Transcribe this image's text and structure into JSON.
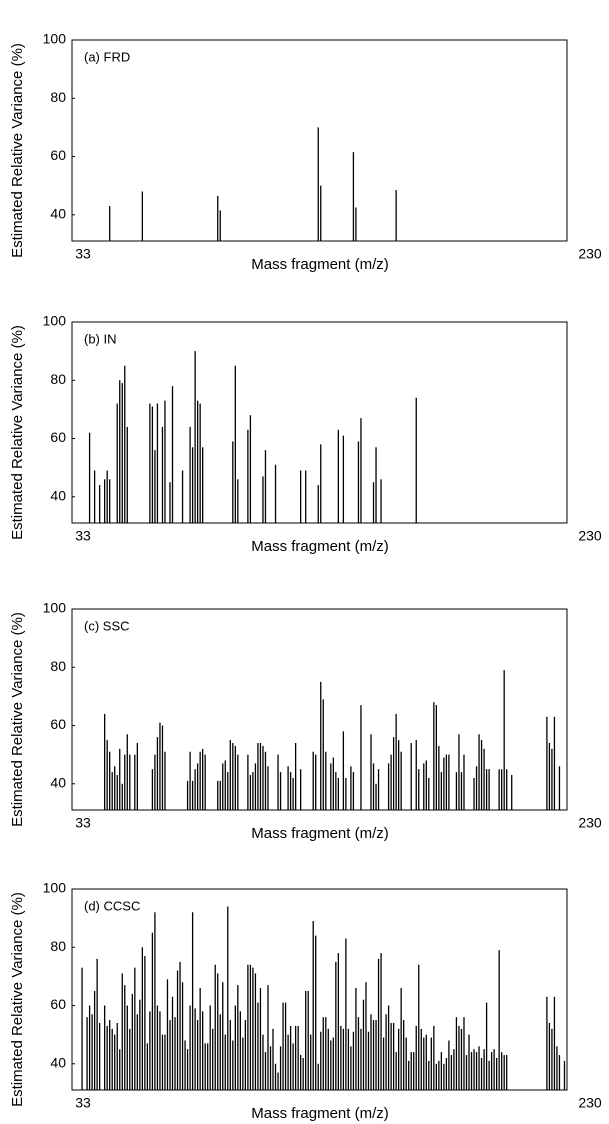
{
  "chart_data": [
    {
      "type": "bar",
      "title": "(a) FRD",
      "ylabel": "Estimated Relative Variance (%)",
      "xlabel": "Mass fragment (m/z)",
      "xlim": [
        33,
        230
      ],
      "xticks": [
        33,
        230
      ],
      "ylim": [
        31,
        100
      ],
      "yticks": [
        40,
        60,
        80,
        100
      ],
      "color": "#000000",
      "x": [
        48,
        61,
        91,
        92,
        131,
        132,
        145,
        146,
        162
      ],
      "values": [
        43,
        48,
        46.5,
        41.5,
        70,
        50,
        61.5,
        42.5,
        48.5
      ]
    },
    {
      "type": "bar",
      "title": "(b) IN",
      "ylabel": "Estimated Relative Variance (%)",
      "xlabel": "Mass fragment (m/z)",
      "xlim": [
        33,
        230
      ],
      "xticks": [
        33,
        230
      ],
      "ylim": [
        31,
        100
      ],
      "yticks": [
        40,
        60,
        80,
        100
      ],
      "color": "#000000",
      "x": [
        40,
        42,
        44,
        46,
        47,
        48,
        51,
        52,
        53,
        54,
        55,
        64,
        65,
        66,
        67,
        69,
        70,
        72,
        73,
        77,
        80,
        81,
        82,
        83,
        84,
        85,
        97,
        98,
        99,
        103,
        104,
        109,
        110,
        114,
        124,
        126,
        131,
        132,
        139,
        141,
        147,
        148,
        153,
        154,
        156,
        170
      ],
      "values": [
        62,
        49,
        44,
        46,
        49,
        46,
        72,
        80,
        79,
        85,
        64,
        72,
        71,
        56,
        72,
        64,
        73,
        45,
        78,
        49,
        64,
        57,
        90,
        73,
        72,
        57,
        59,
        85,
        46,
        63,
        68,
        47,
        56,
        51,
        49,
        49,
        44,
        58,
        63,
        61,
        59,
        67,
        45,
        57,
        46,
        74
      ]
    },
    {
      "type": "bar",
      "title": "(c) SSC",
      "ylabel": "Estimated Relative Variance (%)",
      "xlabel": "Mass fragment (m/z)",
      "xlim": [
        33,
        230
      ],
      "xticks": [
        33,
        230
      ],
      "ylim": [
        31,
        100
      ],
      "yticks": [
        40,
        60,
        80,
        100
      ],
      "color": "#000000",
      "x": [
        46,
        47,
        48,
        49,
        50,
        51,
        52,
        53,
        54,
        55,
        56,
        58,
        59,
        65,
        66,
        67,
        68,
        69,
        70,
        79,
        80,
        81,
        82,
        83,
        84,
        85,
        86,
        91,
        92,
        93,
        94,
        95,
        96,
        97,
        98,
        99,
        103,
        104,
        105,
        106,
        107,
        108,
        109,
        110,
        111,
        115,
        116,
        119,
        120,
        121,
        122,
        124,
        129,
        130,
        132,
        133,
        134,
        136,
        137,
        138,
        139,
        141,
        142,
        144,
        145,
        148,
        152,
        153,
        154,
        155,
        159,
        160,
        161,
        162,
        163,
        164,
        168,
        170,
        171,
        173,
        174,
        175,
        177,
        178,
        179,
        180,
        181,
        182,
        183,
        186,
        187,
        188,
        189,
        193,
        194,
        195,
        196,
        197,
        198,
        199,
        203,
        204,
        205,
        206,
        208,
        222,
        223,
        224,
        225,
        227
      ],
      "values": [
        64,
        55,
        51,
        44,
        46,
        43,
        52,
        40,
        50,
        57,
        50,
        50,
        54,
        45,
        50,
        56,
        61,
        60,
        51,
        41,
        51,
        41,
        45,
        47,
        51,
        52,
        50,
        41,
        41,
        47,
        48,
        44,
        55,
        54,
        53,
        50,
        50,
        43,
        44,
        47,
        54,
        54,
        53,
        51,
        46,
        50,
        44,
        46,
        44,
        42,
        54,
        45,
        51,
        50,
        75,
        69,
        51,
        47,
        49,
        44,
        42,
        58,
        42,
        46,
        44,
        67,
        57,
        47,
        40,
        45,
        47,
        50,
        56,
        64,
        55,
        51,
        54,
        55,
        45,
        47,
        48,
        42,
        68,
        67,
        53,
        44,
        49,
        50,
        50,
        44,
        57,
        44,
        50,
        42,
        46,
        57,
        55,
        52,
        45,
        45,
        45,
        45,
        79,
        45,
        43,
        63,
        54,
        52,
        63,
        46
      ]
    },
    {
      "type": "bar",
      "title": "(d) CCSC",
      "ylabel": "Estimated Relative Variance (%)",
      "xlabel": "Mass fragment (m/z)",
      "xlim": [
        33,
        230
      ],
      "xticks": [
        33,
        230
      ],
      "ylim": [
        31,
        100
      ],
      "yticks": [
        40,
        60,
        80,
        100
      ],
      "color": "#000000",
      "x": [
        37,
        39,
        40,
        41,
        42,
        43,
        44,
        46,
        47,
        48,
        49,
        50,
        51,
        52,
        53,
        54,
        55,
        56,
        57,
        58,
        59,
        60,
        61,
        62,
        63,
        64,
        65,
        66,
        67,
        68,
        69,
        70,
        71,
        72,
        73,
        74,
        75,
        76,
        77,
        78,
        79,
        80,
        81,
        82,
        83,
        84,
        85,
        86,
        87,
        88,
        89,
        90,
        91,
        92,
        93,
        94,
        95,
        96,
        97,
        98,
        99,
        100,
        101,
        102,
        103,
        104,
        105,
        106,
        107,
        108,
        109,
        110,
        111,
        112,
        113,
        114,
        115,
        116,
        117,
        118,
        119,
        120,
        121,
        122,
        123,
        124,
        125,
        126,
        127,
        128,
        129,
        130,
        131,
        132,
        133,
        134,
        135,
        136,
        137,
        138,
        139,
        140,
        141,
        142,
        143,
        144,
        145,
        146,
        147,
        148,
        149,
        150,
        151,
        152,
        153,
        154,
        155,
        156,
        157,
        158,
        159,
        160,
        161,
        162,
        163,
        164,
        165,
        166,
        167,
        168,
        169,
        170,
        171,
        172,
        173,
        174,
        175,
        176,
        177,
        178,
        179,
        180,
        181,
        182,
        183,
        184,
        185,
        186,
        187,
        188,
        189,
        190,
        191,
        192,
        193,
        194,
        195,
        196,
        197,
        198,
        199,
        200,
        201,
        202,
        203,
        204,
        205,
        206,
        222,
        223,
        224,
        225,
        226,
        227,
        229
      ],
      "values": [
        73,
        56,
        60,
        57,
        65,
        76,
        54,
        60,
        53,
        55,
        52,
        50,
        54,
        45,
        71,
        67,
        60,
        52,
        64,
        73,
        57,
        62,
        80,
        77,
        47,
        58,
        85,
        92,
        60,
        58,
        50,
        50,
        69,
        55,
        63,
        56,
        72,
        75,
        68,
        48,
        45,
        60,
        92,
        59,
        55,
        66,
        58,
        47,
        47,
        60,
        52,
        74,
        71,
        57,
        68,
        50,
        94,
        55,
        48,
        60,
        67,
        58,
        49,
        55,
        74,
        74,
        73,
        71,
        61,
        66,
        50,
        44,
        67,
        46,
        52,
        40,
        37,
        46,
        61,
        61,
        50,
        53,
        47,
        53,
        53,
        43,
        42,
        65,
        65,
        50,
        89,
        84,
        40,
        51,
        56,
        56,
        52,
        48,
        49,
        75,
        78,
        53,
        52,
        83,
        52,
        46,
        51,
        66,
        56,
        52,
        62,
        68,
        51,
        57,
        55,
        55,
        76,
        78,
        49,
        57,
        60,
        54,
        54,
        44,
        52,
        66,
        55,
        49,
        41,
        44,
        44,
        53,
        74,
        52,
        49,
        50,
        41,
        49,
        53,
        40,
        41,
        44,
        40,
        42,
        48,
        43,
        45,
        56,
        53,
        52,
        56,
        43,
        50,
        44,
        45,
        44,
        46,
        42,
        45,
        61,
        41,
        44,
        45,
        42,
        79,
        44,
        43,
        43,
        63,
        54,
        52,
        63,
        46,
        43,
        41
      ]
    }
  ]
}
